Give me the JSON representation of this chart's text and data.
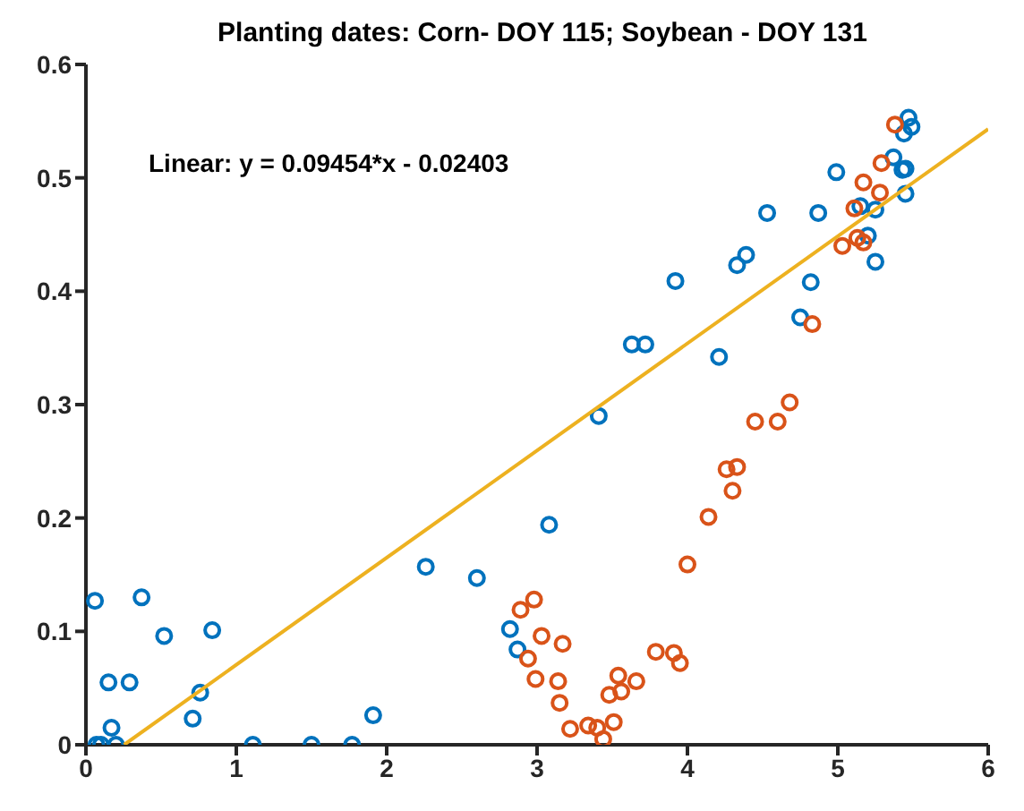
{
  "chart_data": {
    "type": "scatter",
    "title": "Planting dates: Corn- DOY 115; Soybean - DOY 131",
    "annotations": [
      "Linear:  y = 0.09454*x - 0.02403"
    ],
    "xlim": [
      0,
      6
    ],
    "xticks": [
      0,
      1,
      2,
      3,
      4,
      5,
      6
    ],
    "ylim": [
      0,
      0.6
    ],
    "yticks": [
      0,
      0.1,
      0.2,
      0.3,
      0.4,
      0.5,
      0.6
    ],
    "grid": false,
    "legend": false,
    "series": [
      {
        "marker": "circle",
        "color": "#0072bd",
        "x": [
          0.06,
          0.37,
          0.15,
          0.29,
          0.52,
          0.84,
          0.76,
          0.71,
          0.17,
          0.07,
          0.1,
          0.2,
          1.11,
          1.5,
          1.77,
          1.91,
          2.26,
          2.6,
          2.82,
          2.87,
          3.08,
          3.41,
          3.63,
          3.72,
          3.92,
          4.21,
          4.33,
          4.39,
          4.53,
          4.75,
          4.82,
          4.87,
          4.99,
          5.25,
          5.2,
          5.15,
          5.25,
          5.45,
          5.43,
          5.45,
          5.37,
          5.47,
          5.49,
          5.44
        ],
        "values": [
          0.127,
          0.13,
          0.055,
          0.055,
          0.096,
          0.101,
          0.046,
          0.023,
          0.015,
          0,
          0,
          0,
          0,
          0,
          0,
          0.026,
          0.157,
          0.147,
          0.102,
          0.084,
          0.194,
          0.29,
          0.353,
          0.353,
          0.409,
          0.342,
          0.423,
          0.432,
          0.469,
          0.377,
          0.408,
          0.469,
          0.505,
          0.426,
          0.449,
          0.475,
          0.472,
          0.486,
          0.507,
          0.508,
          0.518,
          0.553,
          0.545,
          0.539
        ]
      },
      {
        "marker": "circle",
        "color": "#d95319",
        "x": [
          5.38,
          5.29,
          5.17,
          5.28,
          5.11,
          5.13,
          5.17,
          5.03,
          4.83,
          4.68,
          4.45,
          4.6,
          4.26,
          4.33,
          4.3,
          4.14,
          4.0,
          2.89,
          2.98,
          3.03,
          3.17,
          2.94,
          2.99,
          3.14,
          3.15,
          3.79,
          3.91,
          3.95,
          3.54,
          3.66,
          3.48,
          3.56,
          3.22,
          3.34,
          3.4,
          3.51,
          3.44
        ],
        "values": [
          0.547,
          0.513,
          0.496,
          0.487,
          0.473,
          0.447,
          0.443,
          0.44,
          0.371,
          0.302,
          0.285,
          0.285,
          0.243,
          0.245,
          0.224,
          0.201,
          0.159,
          0.119,
          0.128,
          0.096,
          0.089,
          0.076,
          0.058,
          0.056,
          0.037,
          0.082,
          0.081,
          0.072,
          0.061,
          0.056,
          0.044,
          0.047,
          0.014,
          0.017,
          0.015,
          0.02,
          0.005
        ]
      },
      {
        "type": "line",
        "marker": "none",
        "color": "#edb120",
        "x": [
          0.254,
          6
        ],
        "values": [
          0,
          0.543
        ]
      }
    ]
  }
}
